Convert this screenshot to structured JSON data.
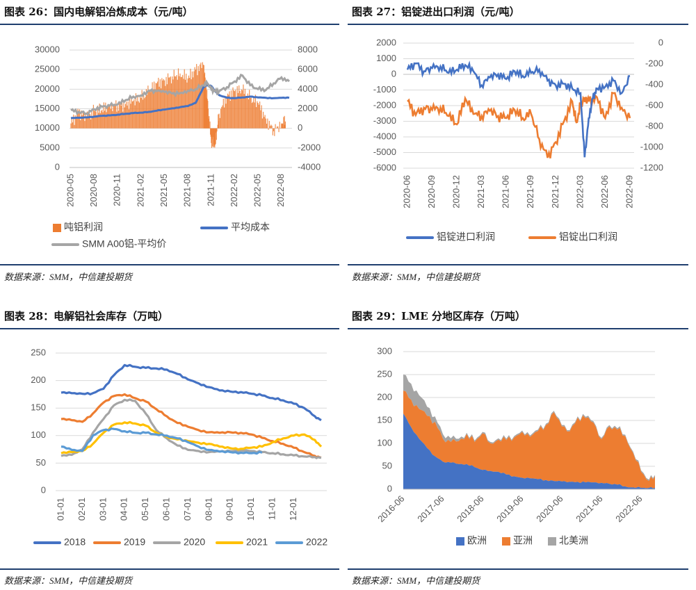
{
  "source_text": "数据来源：SMM，中信建投期货",
  "chart_data": [
    {
      "id": "c26",
      "type": "line",
      "title": "图表 26：国内电解铝冶炼成本（元/吨）",
      "x_labels": [
        "2020-05",
        "2020-08",
        "2020-11",
        "2021-02",
        "2021-05",
        "2021-08",
        "2021-11",
        "2022-02",
        "2022-05",
        "2022-08"
      ],
      "x_range": [
        0,
        28
      ],
      "y_left": {
        "range": [
          0,
          30000
        ],
        "ticks": [
          "0",
          "5000",
          "10000",
          "15000",
          "20000",
          "25000",
          "30000"
        ]
      },
      "y_right": {
        "range": [
          -4000,
          8000
        ],
        "ticks": [
          "-4000",
          "-2000",
          "0",
          "2000",
          "4000",
          "6000",
          "8000"
        ]
      },
      "legend": [
        "吨铝利润",
        "平均成本",
        "SMM A00铝-平均价"
      ],
      "colors": {
        "profit": "#ed7d31",
        "cost": "#4472c4",
        "price": "#a5a5a5"
      },
      "series": [
        {
          "name": "吨铝利润",
          "axis": "right",
          "kind": "bar",
          "x": [
            0,
            1,
            2,
            3,
            4,
            5,
            6,
            7,
            8,
            9,
            10,
            11,
            12,
            13,
            14,
            15,
            16,
            17,
            17.5,
            18,
            18.5,
            19,
            20,
            21,
            22,
            23,
            24,
            25,
            26,
            27,
            27.5
          ],
          "values": [
            500,
            1700,
            1100,
            1800,
            1900,
            2400,
            2300,
            2500,
            2800,
            3100,
            3800,
            4600,
            4900,
            5300,
            5600,
            5100,
            6000,
            6500,
            3000,
            -1500,
            -1700,
            1500,
            3300,
            3800,
            3900,
            3100,
            2600,
            1000,
            -300,
            500,
            700
          ]
        },
        {
          "name": "平均成本",
          "axis": "left",
          "kind": "line",
          "x": [
            0,
            1,
            2,
            3,
            4,
            5,
            6,
            7,
            8,
            9,
            10,
            11,
            12,
            13,
            14,
            15,
            16,
            17,
            17.5,
            18,
            18.5,
            19,
            20,
            21,
            22,
            23,
            24,
            25,
            26,
            27,
            28
          ],
          "values": [
            12600,
            12700,
            12800,
            13000,
            13200,
            13300,
            13500,
            13700,
            13900,
            14000,
            14200,
            14500,
            14800,
            15100,
            15400,
            15700,
            16500,
            20500,
            21000,
            20800,
            19500,
            18500,
            17800,
            17700,
            17900,
            18100,
            17900,
            17800,
            17700,
            17800,
            17800
          ]
        },
        {
          "name": "SMM A00铝-平均价",
          "axis": "left",
          "kind": "line",
          "x": [
            0,
            1,
            2,
            3,
            4,
            5,
            6,
            7,
            8,
            9,
            10,
            11,
            12,
            13,
            14,
            15,
            16,
            17,
            17.5,
            18,
            18.5,
            19,
            20,
            21,
            22,
            23,
            24,
            25,
            26,
            27,
            28
          ],
          "values": [
            14600,
            14200,
            13800,
            14900,
            15500,
            15800,
            16100,
            17200,
            18100,
            18400,
            19600,
            19500,
            19300,
            18900,
            19000,
            19600,
            20000,
            21000,
            21500,
            20000,
            19500,
            19500,
            20500,
            22000,
            23500,
            21000,
            20000,
            19800,
            21500,
            23000,
            22000
          ]
        }
      ]
    },
    {
      "id": "c27",
      "type": "line",
      "title": "图表 27：铝锭进出口利润（元/吨）",
      "x_labels": [
        "2020-06",
        "2020-09",
        "2020-12",
        "2021-03",
        "2021-06",
        "2021-09",
        "2021-12",
        "2022-03",
        "2022-06",
        "2022-09"
      ],
      "x_range": [
        0,
        27
      ],
      "y_left": {
        "range": [
          -6000,
          2000
        ],
        "ticks": [
          "-6000",
          "-5000",
          "-4000",
          "-3000",
          "-2000",
          "-1000",
          "0",
          "1000",
          "2000"
        ]
      },
      "y_right": {
        "range": [
          -1200,
          0
        ],
        "ticks": [
          "-1200",
          "-1000",
          "-800",
          "-600",
          "-400",
          "-200",
          "0"
        ]
      },
      "legend": [
        "铝锭进口利润",
        "铝锭出口利润"
      ],
      "colors": {
        "import": "#4472c4",
        "export": "#ed7d31"
      },
      "series": [
        {
          "name": "铝锭进口利润",
          "axis": "left",
          "x": [
            0,
            1,
            2,
            3,
            4,
            5,
            6,
            7,
            8,
            9,
            10,
            11,
            12,
            13,
            14,
            15,
            16,
            17,
            18,
            19,
            20,
            21,
            21.5,
            22,
            22.5,
            23,
            24,
            25,
            26,
            27
          ],
          "values": [
            300,
            700,
            200,
            400,
            500,
            100,
            300,
            600,
            200,
            -700,
            -200,
            0,
            -300,
            200,
            -100,
            100,
            300,
            -400,
            -700,
            -600,
            -900,
            -1200,
            -5300,
            -2800,
            -1500,
            -900,
            -800,
            -400,
            -1200,
            -100
          ]
        },
        {
          "name": "铝锭出口利润",
          "axis": "right",
          "x": [
            0,
            1,
            2,
            3,
            4,
            5,
            6,
            7,
            8,
            9,
            10,
            11,
            12,
            13,
            14,
            15,
            16,
            17,
            18,
            19,
            20,
            20.5,
            21,
            21.5,
            22,
            23,
            24,
            25,
            26,
            27
          ],
          "values": [
            -560,
            -690,
            -620,
            -640,
            -620,
            -700,
            -780,
            -530,
            -680,
            -700,
            -650,
            -700,
            -720,
            -640,
            -720,
            -680,
            -920,
            -1100,
            -950,
            -750,
            -560,
            -760,
            -600,
            -520,
            -560,
            -520,
            -720,
            -480,
            -620,
            -720
          ]
        }
      ]
    },
    {
      "id": "c28",
      "type": "line",
      "title": "图表 28：电解铝社会库存（万吨）",
      "x_labels": [
        "01-01",
        "02-01",
        "03-01",
        "04-01",
        "05-01",
        "06-01",
        "07-01",
        "08-01",
        "09-01",
        "10-01",
        "11-01",
        "12-01"
      ],
      "x_range": [
        0,
        12.3
      ],
      "y_left": {
        "range": [
          0,
          250
        ],
        "ticks": [
          "0",
          "50",
          "100",
          "150",
          "200",
          "250"
        ]
      },
      "legend": [
        "2018",
        "2019",
        "2020",
        "2021",
        "2022"
      ],
      "colors": {
        "2018": "#4472c4",
        "2019": "#ed7d31",
        "2020": "#a5a5a5",
        "2021": "#ffc000",
        "2022": "#5b9bd5"
      },
      "series": [
        {
          "name": "2018",
          "x": [
            0,
            0.5,
            1,
            1.5,
            2,
            2.5,
            3,
            3.5,
            4,
            4.5,
            5,
            5.5,
            6,
            6.5,
            7,
            7.5,
            8,
            8.5,
            9,
            9.5,
            10,
            10.5,
            11,
            11.5,
            12,
            12.3
          ],
          "values": [
            178,
            177,
            176,
            177,
            185,
            210,
            228,
            225,
            223,
            222,
            220,
            212,
            202,
            195,
            188,
            182,
            180,
            179,
            176,
            173,
            168,
            164,
            158,
            150,
            135,
            128
          ]
        },
        {
          "name": "2019",
          "x": [
            0,
            0.5,
            1,
            1.5,
            2,
            2.5,
            3,
            3.5,
            4,
            4.5,
            5,
            5.5,
            6,
            6.5,
            7,
            7.5,
            8,
            8.5,
            9,
            9.5,
            10,
            10.5,
            11,
            11.5,
            12,
            12.3
          ],
          "values": [
            130,
            128,
            125,
            140,
            160,
            172,
            175,
            168,
            162,
            148,
            135,
            123,
            116,
            110,
            106,
            105,
            106,
            105,
            102,
            96,
            90,
            85,
            78,
            70,
            63,
            60
          ]
        },
        {
          "name": "2020",
          "x": [
            0,
            0.5,
            1,
            1.5,
            2,
            2.5,
            3,
            3.5,
            4,
            4.5,
            5,
            5.5,
            6,
            6.5,
            7,
            7.5,
            8,
            8.5,
            9,
            9.5,
            10,
            10.5,
            11,
            11.5,
            12,
            12.3
          ],
          "values": [
            63,
            65,
            75,
            105,
            130,
            155,
            165,
            163,
            140,
            110,
            95,
            82,
            74,
            72,
            70,
            71,
            72,
            73,
            72,
            70,
            68,
            66,
            64,
            62,
            61,
            60
          ]
        },
        {
          "name": "2021",
          "x": [
            0,
            0.5,
            1,
            1.5,
            2,
            2.5,
            3,
            3.5,
            4,
            4.5,
            5,
            5.5,
            6,
            6.5,
            7,
            7.5,
            8,
            8.5,
            9,
            9.5,
            10,
            10.5,
            11,
            11.5,
            12,
            12.3
          ],
          "values": [
            68,
            70,
            72,
            85,
            105,
            120,
            124,
            122,
            118,
            105,
            98,
            93,
            90,
            87,
            85,
            80,
            77,
            76,
            78,
            80,
            88,
            95,
            100,
            102,
            92,
            80
          ]
        },
        {
          "name": "2022",
          "x": [
            0,
            0.5,
            1,
            1.5,
            2,
            2.5,
            3,
            3.5,
            4,
            4.5,
            5,
            5.5,
            6,
            6.5,
            7,
            7.5,
            8,
            8.5,
            9,
            9.5
          ],
          "values": [
            80,
            74,
            72,
            100,
            110,
            112,
            108,
            105,
            105,
            102,
            100,
            95,
            88,
            80,
            74,
            71,
            70,
            69,
            68,
            69
          ]
        }
      ]
    },
    {
      "id": "c29",
      "type": "area",
      "title": "图表 29：LME 分地区库存（万吨）",
      "x_labels": [
        "2016-06",
        "2017-06",
        "2018-06",
        "2019-06",
        "2020-06",
        "2021-06",
        "2022-06"
      ],
      "x_range": [
        0,
        6.35
      ],
      "y_left": {
        "range": [
          0,
          300
        ],
        "ticks": [
          "0",
          "50",
          "100",
          "150",
          "200",
          "250",
          "300"
        ]
      },
      "legend": [
        "欧洲",
        "亚洲",
        "北美洲"
      ],
      "colors": {
        "europe": "#4472c4",
        "asia": "#ed7d31",
        "namerica": "#a5a5a5"
      },
      "x": [
        0,
        0.2,
        0.4,
        0.6,
        0.8,
        1,
        1.2,
        1.4,
        1.6,
        1.8,
        2,
        2.2,
        2.4,
        2.6,
        2.8,
        3,
        3.2,
        3.4,
        3.6,
        3.8,
        4,
        4.2,
        4.4,
        4.6,
        4.8,
        5,
        5.2,
        5.4,
        5.6,
        5.8,
        6,
        6.2,
        6.35
      ],
      "series": [
        {
          "name": "欧洲",
          "values": [
            165,
            135,
            110,
            90,
            72,
            60,
            58,
            55,
            55,
            48,
            42,
            40,
            38,
            32,
            28,
            25,
            24,
            22,
            20,
            18,
            17,
            16,
            16,
            15,
            15,
            14,
            12,
            10,
            6,
            4,
            3,
            3,
            3
          ]
        },
        {
          "name": "亚洲",
          "values": [
            50,
            60,
            65,
            70,
            75,
            50,
            45,
            50,
            65,
            55,
            80,
            60,
            70,
            75,
            85,
            100,
            90,
            105,
            120,
            150,
            120,
            110,
            140,
            140,
            130,
            95,
            125,
            120,
            110,
            75,
            35,
            15,
            25
          ]
        },
        {
          "name": "北美洲",
          "values": [
            35,
            35,
            30,
            20,
            12,
            10,
            8,
            5,
            3,
            3,
            3,
            3,
            3,
            3,
            3,
            3,
            3,
            3,
            3,
            3,
            3,
            3,
            3,
            3,
            3,
            3,
            3,
            3,
            3,
            3,
            3,
            3,
            3
          ]
        }
      ]
    }
  ]
}
